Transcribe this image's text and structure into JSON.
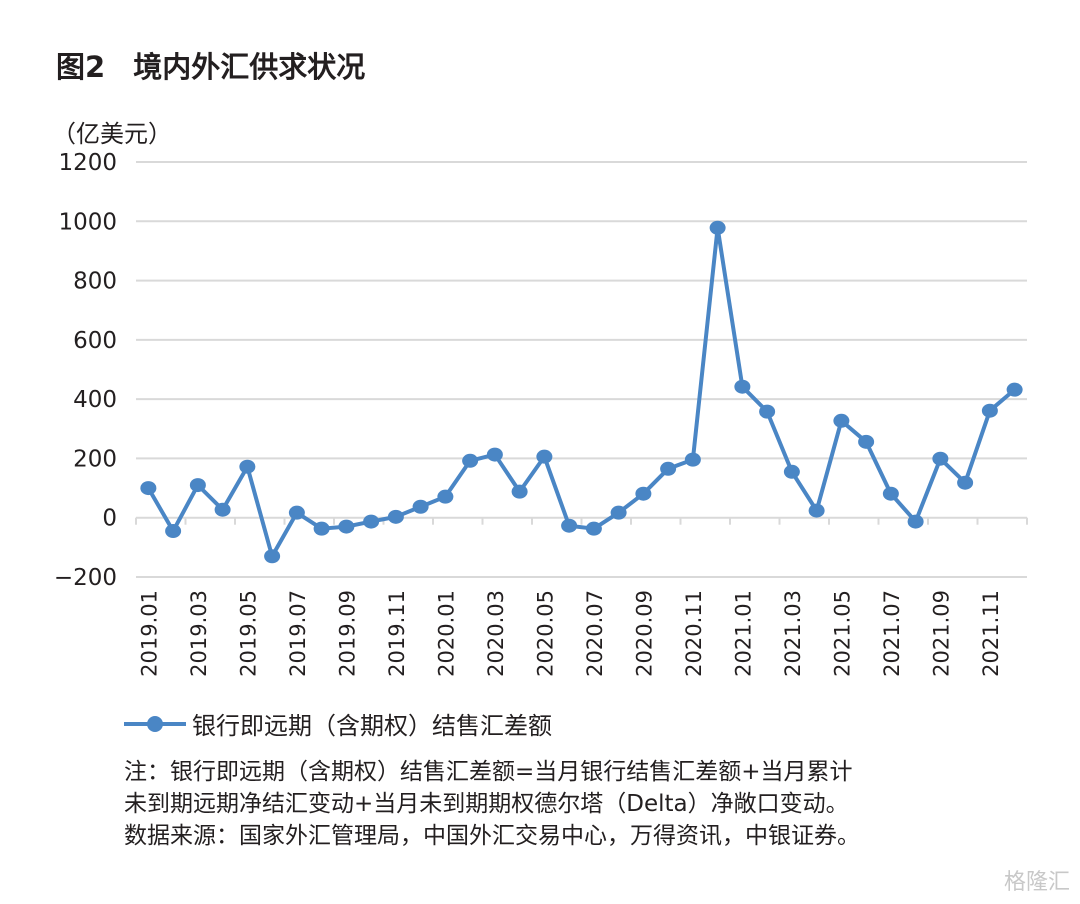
{
  "title": {
    "fig": "图2",
    "text": "境内外汇供求状况"
  },
  "unit": "（亿美元）",
  "legend": "银行即远期（含期权）结售汇差额",
  "notes": [
    "注：银行即远期（含期权）结售汇差额=当月银行结售汇差额+当月累计",
    "未到期远期净结汇变动+当月未到期期权德尔塔（Delta）净敞口变动。",
    "数据来源：国家外汇管理局，中国外汇交易中心，万得资讯，中银证券。"
  ],
  "watermark": "格隆汇",
  "chart_data": {
    "type": "line",
    "ylim": [
      -200,
      1200
    ],
    "yticks": [
      -200,
      0,
      200,
      400,
      600,
      800,
      1000,
      1200
    ],
    "grid": true,
    "legend_position": "bottom",
    "color": "#4a86c5",
    "categories": [
      "2019.01",
      "2019.02",
      "2019.03",
      "2019.04",
      "2019.05",
      "2019.06",
      "2019.07",
      "2019.08",
      "2019.09",
      "2019.10",
      "2019.11",
      "2019.12",
      "2020.01",
      "2020.02",
      "2020.03",
      "2020.04",
      "2020.05",
      "2020.06",
      "2020.07",
      "2020.08",
      "2020.09",
      "2020.10",
      "2020.11",
      "2020.12",
      "2021.01",
      "2021.02",
      "2021.03",
      "2021.04",
      "2021.05",
      "2021.06",
      "2021.07",
      "2021.08",
      "2021.09",
      "2021.10",
      "2021.11",
      "2021.12"
    ],
    "xtick_labels": [
      "2019.01",
      "2019.03",
      "2019.05",
      "2019.07",
      "2019.09",
      "2019.11",
      "2020.01",
      "2020.03",
      "2020.05",
      "2020.07",
      "2020.09",
      "2020.11",
      "2021.01",
      "2021.03",
      "2021.05",
      "2021.07",
      "2021.09",
      "2021.11"
    ],
    "series": [
      {
        "name": "银行即远期（含期权）结售汇差额",
        "values": [
          100,
          -45,
          110,
          27,
          172,
          -130,
          17,
          -37,
          -30,
          -13,
          3,
          37,
          71,
          192,
          213,
          88,
          206,
          -27,
          -37,
          17,
          81,
          165,
          196,
          978,
          442,
          358,
          155,
          24,
          327,
          256,
          81,
          -13,
          199,
          118,
          361,
          432
        ]
      }
    ]
  }
}
